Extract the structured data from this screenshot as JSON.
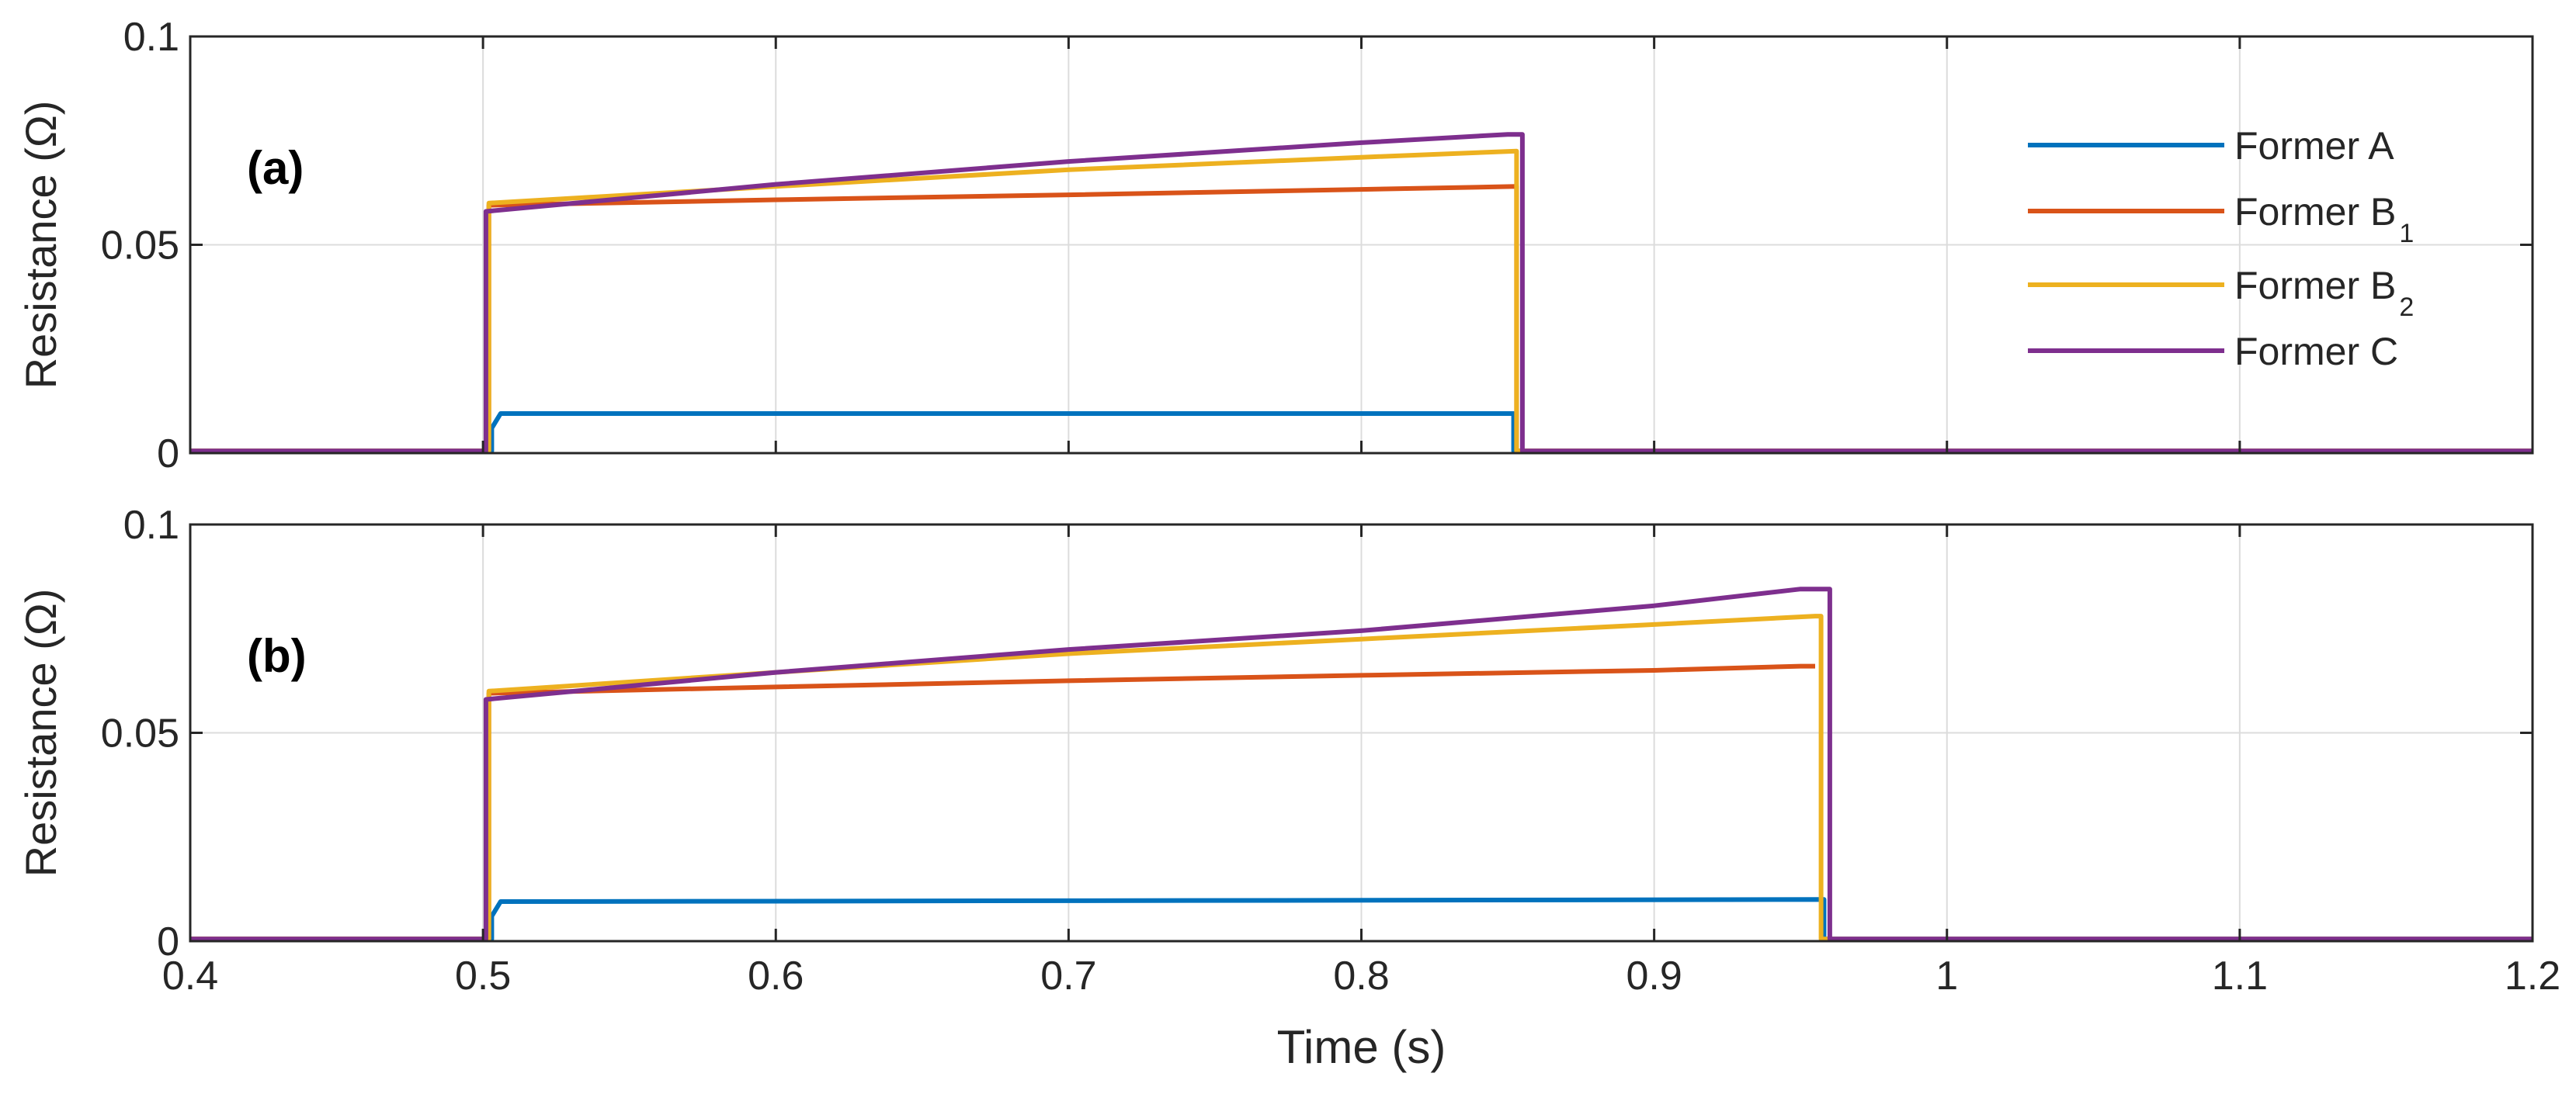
{
  "chart_data": [
    {
      "type": "line",
      "panel_label": "(a)",
      "xlim": [
        0.4,
        1.2
      ],
      "ylim": [
        0,
        0.1
      ],
      "xticks": [
        "0.4",
        "0.5",
        "0.6",
        "0.7",
        "0.8",
        "0.9",
        "1",
        "1.1",
        "1.2"
      ],
      "yticks": [
        "0",
        "0.05",
        "0.1"
      ],
      "ylabel": "Resistance (Ω)",
      "xlabel": "",
      "grid": true,
      "legend": {
        "placement": "top-right",
        "entries": [
          {
            "name": "Former A",
            "sub": ""
          },
          {
            "name": "Former B",
            "sub": "1"
          },
          {
            "name": "Former B",
            "sub": "2"
          },
          {
            "name": "Former C",
            "sub": ""
          }
        ]
      },
      "series": [
        {
          "name": "Former A",
          "color": "#0072BD",
          "x": [
            0.4,
            0.503,
            0.503,
            0.506,
            0.506,
            0.85,
            0.852,
            0.852,
            1.2
          ],
          "y": [
            0.0005,
            0.0005,
            0.006,
            0.0095,
            0.0095,
            0.0095,
            0.0095,
            0.0005,
            0.0005
          ]
        },
        {
          "name": "Former B1",
          "color": "#D95319",
          "x": [
            0.4,
            0.502,
            0.502,
            0.6,
            0.7,
            0.8,
            0.853,
            0.853,
            1.2
          ],
          "y": [
            0.0005,
            0.0005,
            0.0595,
            0.0608,
            0.062,
            0.0633,
            0.064,
            0.0005,
            0.0005
          ]
        },
        {
          "name": "Former B2",
          "color": "#EDB120",
          "x": [
            0.4,
            0.502,
            0.502,
            0.6,
            0.7,
            0.8,
            0.853,
            0.853,
            1.2
          ],
          "y": [
            0.0005,
            0.0005,
            0.06,
            0.064,
            0.068,
            0.071,
            0.0725,
            0.0005,
            0.0005
          ]
        },
        {
          "name": "Former C",
          "color": "#7E2F8E",
          "x": [
            0.4,
            0.501,
            0.501,
            0.6,
            0.7,
            0.8,
            0.85,
            0.855,
            0.855,
            1.2
          ],
          "y": [
            0.0005,
            0.0005,
            0.058,
            0.0645,
            0.07,
            0.0745,
            0.0765,
            0.0765,
            0.0005,
            0.0005
          ]
        }
      ]
    },
    {
      "type": "line",
      "panel_label": "(b)",
      "xlim": [
        0.4,
        1.2
      ],
      "ylim": [
        0,
        0.1
      ],
      "xticks": [
        "0.4",
        "0.5",
        "0.6",
        "0.7",
        "0.8",
        "0.9",
        "1",
        "1.1",
        "1.2"
      ],
      "yticks": [
        "0",
        "0.05",
        "0.1"
      ],
      "ylabel": "Resistance (Ω)",
      "xlabel": "Time (s)",
      "grid": true,
      "series": [
        {
          "name": "Former A",
          "color": "#0072BD",
          "x": [
            0.4,
            0.503,
            0.503,
            0.506,
            0.506,
            0.7,
            0.958,
            0.958,
            1.2
          ],
          "y": [
            0.0005,
            0.0005,
            0.006,
            0.0095,
            0.0095,
            0.0097,
            0.01,
            0.0005,
            0.0005
          ]
        },
        {
          "name": "Former B1",
          "color": "#D95319",
          "x": [
            0.4,
            0.502,
            0.502,
            0.6,
            0.7,
            0.8,
            0.9,
            0.95,
            0.955
          ],
          "y": [
            0.0005,
            0.0005,
            0.0595,
            0.061,
            0.0625,
            0.0638,
            0.065,
            0.066,
            0.066
          ]
        },
        {
          "name": "Former B2",
          "color": "#EDB120",
          "x": [
            0.4,
            0.502,
            0.502,
            0.6,
            0.7,
            0.8,
            0.9,
            0.955,
            0.957,
            0.957,
            1.2
          ],
          "y": [
            0.0005,
            0.0005,
            0.06,
            0.0645,
            0.069,
            0.0725,
            0.076,
            0.078,
            0.078,
            0.0005,
            0.0005
          ]
        },
        {
          "name": "Former C",
          "color": "#7E2F8E",
          "x": [
            0.4,
            0.501,
            0.501,
            0.6,
            0.7,
            0.8,
            0.9,
            0.95,
            0.96,
            0.96,
            1.2
          ],
          "y": [
            0.0005,
            0.0005,
            0.058,
            0.0645,
            0.07,
            0.0745,
            0.0805,
            0.0845,
            0.0845,
            0.0005,
            0.0005
          ]
        }
      ]
    }
  ]
}
